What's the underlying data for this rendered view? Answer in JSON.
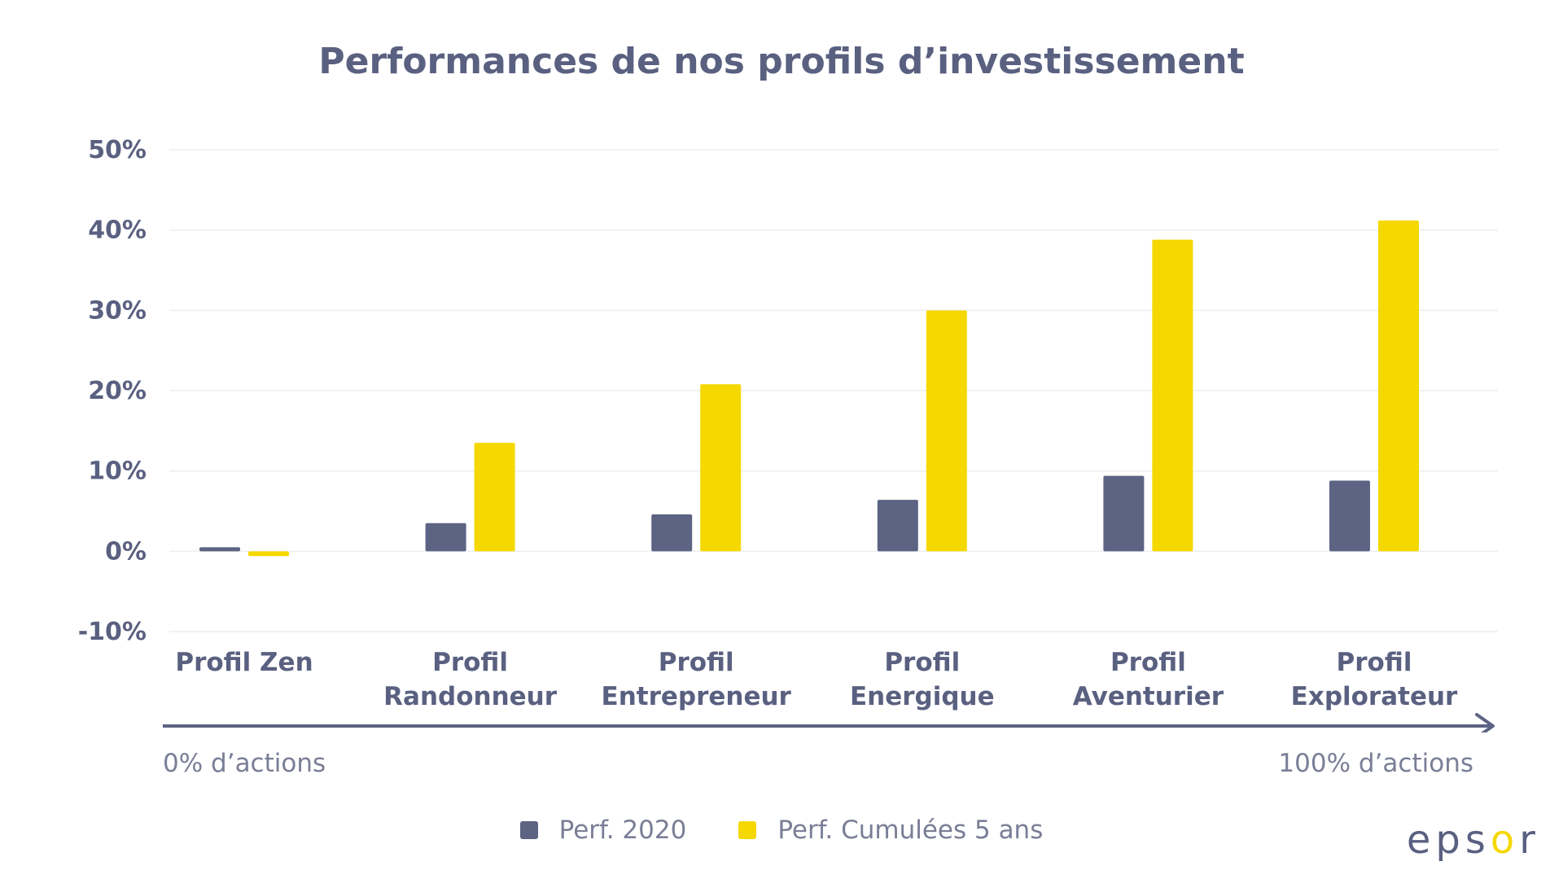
{
  "chart_data": {
    "type": "bar",
    "title": "Performances de nos profils d’investissement",
    "categories": [
      [
        "Profil Zen"
      ],
      [
        "Profil",
        "Randonneur"
      ],
      [
        "Profil",
        "Entrepreneur"
      ],
      [
        "Profil",
        "Energique"
      ],
      [
        "Profil",
        "Aventurier"
      ],
      [
        "Profil",
        "Explorateur"
      ]
    ],
    "series": [
      {
        "name": "Perf. 2020",
        "color": "#5c6383",
        "values": [
          0.5,
          3.5,
          4.6,
          6.4,
          9.4,
          8.8
        ]
      },
      {
        "name": "Perf. Cumulées 5 ans",
        "color": "#f5d800",
        "values": [
          -0.6,
          13.5,
          20.8,
          30.0,
          38.8,
          41.2
        ]
      }
    ],
    "yticks": [
      50,
      40,
      30,
      20,
      10,
      0,
      -10
    ],
    "ytick_labels": [
      "50%",
      "40%",
      "30%",
      "20%",
      "10%",
      "0%",
      "-10%"
    ],
    "ylim": [
      -10,
      50
    ],
    "grid": true,
    "legend_position": "bottom"
  },
  "axis_notes": {
    "left": "0% d’actions",
    "right": "100% d’actions"
  },
  "logo": {
    "text_start": "eps",
    "text_accent": "o",
    "text_end": "r"
  }
}
